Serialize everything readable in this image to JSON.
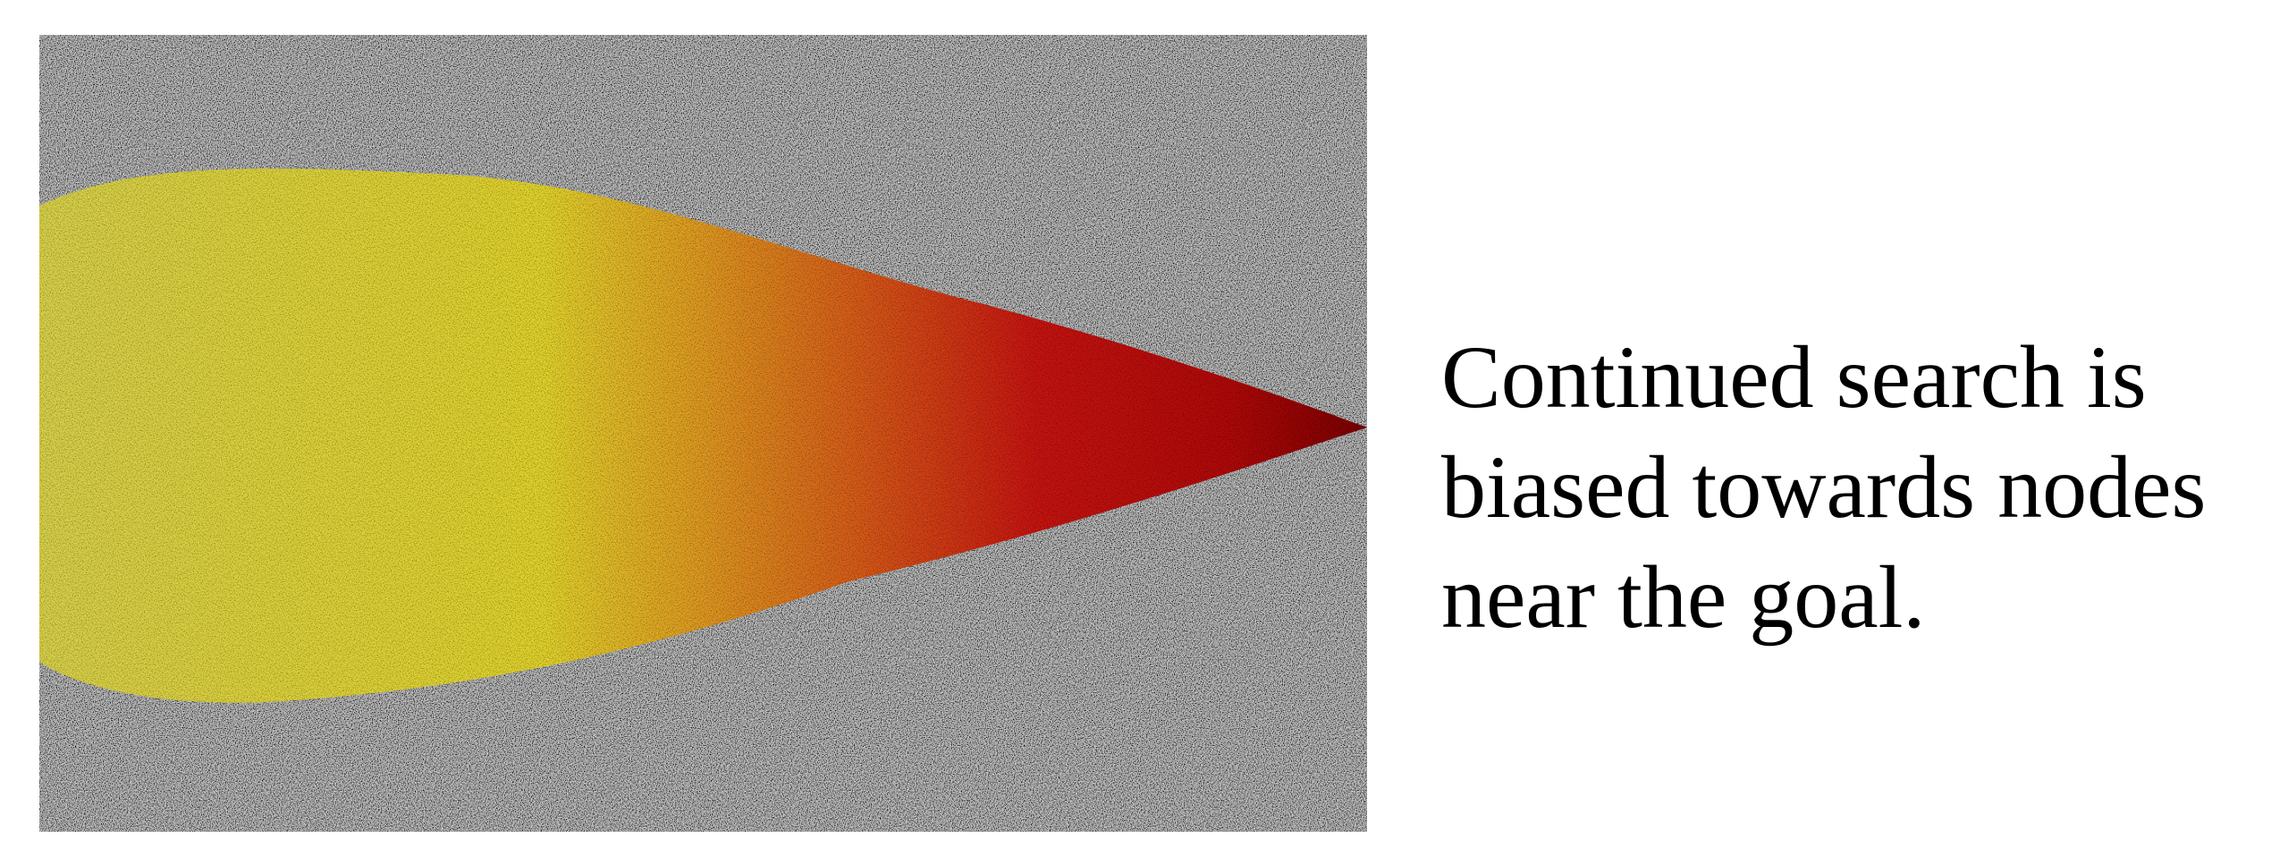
{
  "caption": {
    "lines": [
      "Continued search is",
      "biased towards nodes",
      "near the goal."
    ]
  }
}
